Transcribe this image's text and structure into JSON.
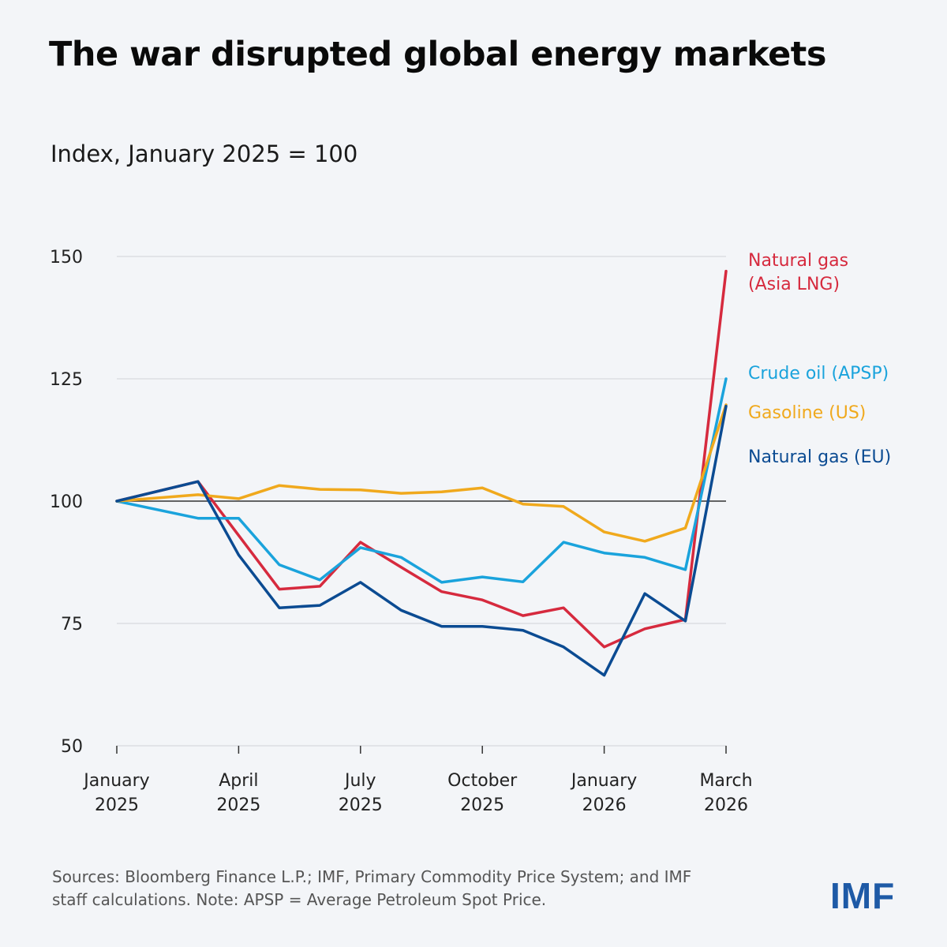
{
  "chart_data": {
    "type": "line",
    "title": "The war disrupted global energy markets",
    "subtitle": "Index, January 2025 = 100",
    "ylim": [
      50,
      150
    ],
    "yticks": [
      50,
      75,
      100,
      125,
      150
    ],
    "reference_line": 100,
    "grid": true,
    "x": [
      0,
      2,
      3,
      4,
      5,
      6,
      7,
      8,
      9,
      10,
      11,
      12,
      13,
      14,
      15
    ],
    "xticks": [
      {
        "x": 0,
        "line1": "January",
        "line2": "2025"
      },
      {
        "x": 3,
        "line1": "April",
        "line2": "2025"
      },
      {
        "x": 6,
        "line1": "July",
        "line2": "2025"
      },
      {
        "x": 9,
        "line1": "October",
        "line2": "2025"
      },
      {
        "x": 12,
        "line1": "January",
        "line2": "2026"
      },
      {
        "x": 15,
        "line1": "March",
        "line2": "2026"
      }
    ],
    "xlim": [
      0,
      15
    ],
    "legend_placement": "right, inline labels",
    "series": [
      {
        "name": "Natural gas (Asia LNG)",
        "label_lines": [
          "Natural gas",
          "(Asia LNG)"
        ],
        "color": "#d62a3e",
        "values": [
          100,
          104,
          93,
          82,
          82.6,
          91.6,
          86.5,
          81.5,
          79.8,
          76.6,
          78.2,
          70.2,
          73.9,
          75.8,
          147
        ]
      },
      {
        "name": "Crude oil (APSP)",
        "label_lines": [
          "Crude oil (APSP)"
        ],
        "color": "#1aa3dc",
        "values": [
          100,
          96.5,
          96.5,
          87,
          83.9,
          90.5,
          88.5,
          83.4,
          84.5,
          83.5,
          91.6,
          89.4,
          88.5,
          86,
          125
        ]
      },
      {
        "name": "Gasoline (US)",
        "label_lines": [
          "Gasoline (US)"
        ],
        "color": "#f0a91d",
        "values": [
          100,
          101.3,
          100.5,
          103.2,
          102.4,
          102.3,
          101.6,
          101.9,
          102.7,
          99.4,
          98.9,
          93.7,
          91.8,
          94.5,
          119.7
        ]
      },
      {
        "name": "Natural gas (EU)",
        "label_lines": [
          "Natural gas (EU)"
        ],
        "color": "#0b4b92",
        "values": [
          100,
          104,
          89,
          78.2,
          78.7,
          83.4,
          77.7,
          74.4,
          74.4,
          73.6,
          70.2,
          64.4,
          81.1,
          75.5,
          119.4
        ]
      }
    ]
  },
  "footer": {
    "line1": "Sources: Bloomberg Finance L.P.; IMF, Primary Commodity Price System; and IMF",
    "line2": "staff calculations. Note: APSP = Average Petroleum Spot Price."
  },
  "logo": "IMF"
}
